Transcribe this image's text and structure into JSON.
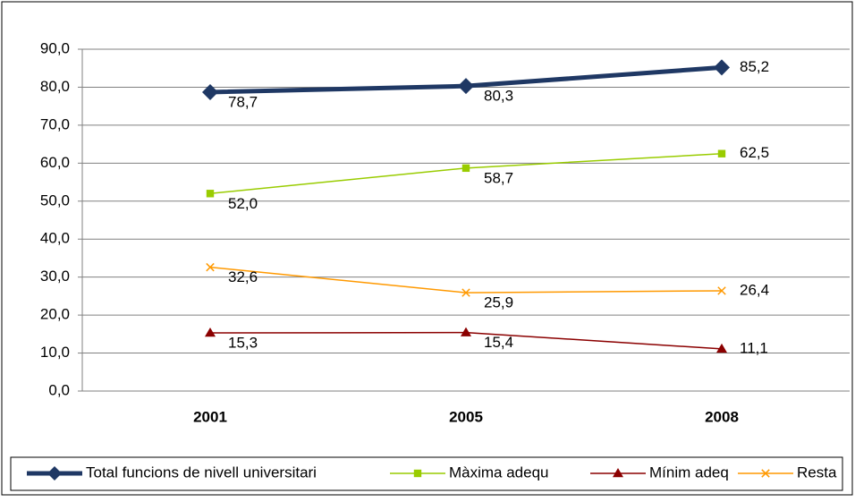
{
  "chart_data": {
    "type": "line",
    "categories": [
      "2001",
      "2005",
      "2008"
    ],
    "ylim": [
      0,
      90
    ],
    "yticks": [
      {
        "value": 0,
        "label": "0,0"
      },
      {
        "value": 10,
        "label": "10,0"
      },
      {
        "value": 20,
        "label": "20,0"
      },
      {
        "value": 30,
        "label": "30,0"
      },
      {
        "value": 40,
        "label": "40,0"
      },
      {
        "value": 50,
        "label": "50,0"
      },
      {
        "value": 60,
        "label": "60,0"
      },
      {
        "value": 70,
        "label": "70,0"
      },
      {
        "value": 80,
        "label": "80,0"
      },
      {
        "value": 90,
        "label": "90,0"
      }
    ],
    "grid": true,
    "legend": "bottom",
    "series": [
      {
        "name": "Total funcions de nivell universitari",
        "color": "#1f3864",
        "marker": "diamond",
        "values": [
          78.7,
          80.3,
          85.2
        ],
        "value_labels": [
          "78,7",
          "80,3",
          "85,2"
        ]
      },
      {
        "name": "Màxima adequ",
        "color": "#99cc00",
        "marker": "square",
        "values": [
          52.0,
          58.7,
          62.5
        ],
        "value_labels": [
          "52,0",
          "58,7",
          "62,5"
        ]
      },
      {
        "name": "Mínim adeq",
        "color": "#8b0000",
        "marker": "triangle",
        "values": [
          15.3,
          15.4,
          11.1
        ],
        "value_labels": [
          "15,3",
          "15,4",
          "11,1"
        ]
      },
      {
        "name": "Resta",
        "color": "#ff9900",
        "marker": "x",
        "values": [
          32.6,
          25.9,
          26.4
        ],
        "value_labels": [
          "32,6",
          "25,9",
          "26,4"
        ]
      }
    ]
  }
}
